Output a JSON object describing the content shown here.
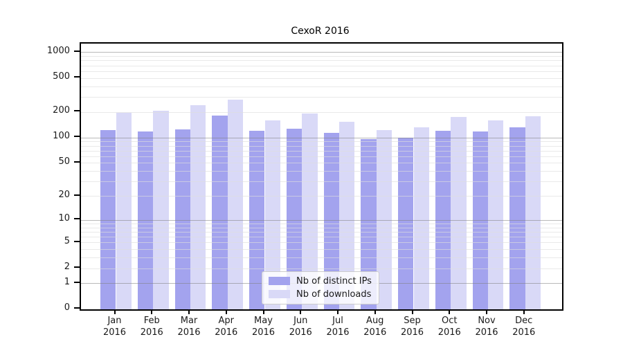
{
  "title": "CexoR 2016",
  "chart_data": {
    "type": "bar",
    "title": "CexoR 2016",
    "categories": [
      "Jan 2016",
      "Feb 2016",
      "Mar 2016",
      "Apr 2016",
      "May 2016",
      "Jun 2016",
      "Jul 2016",
      "Aug 2016",
      "Sep 2016",
      "Oct 2016",
      "Nov 2016",
      "Dec 2016"
    ],
    "x_tick_month": [
      "Jan",
      "Feb",
      "Mar",
      "Apr",
      "May",
      "Jun",
      "Jul",
      "Aug",
      "Sep",
      "Oct",
      "Nov",
      "Dec"
    ],
    "x_tick_year": "2016",
    "series": [
      {
        "name": "Nb of distinct IPs",
        "color": "#a3a3ee",
        "values": [
          124,
          118,
          125,
          183,
          120,
          127,
          114,
          97,
          100,
          121,
          119,
          133
        ]
      },
      {
        "name": "Nb of downloads",
        "color": "#d9d9f7",
        "values": [
          197,
          208,
          240,
          283,
          160,
          193,
          155,
          123,
          133,
          176,
          160,
          179
        ]
      }
    ],
    "xlabel": "",
    "ylabel": "",
    "yscale": "log1p",
    "ylim": [
      0,
      1274
    ],
    "ytick_values": [
      0,
      1,
      2,
      5,
      10,
      20,
      50,
      100,
      200,
      500,
      1000
    ],
    "ytick_labels": [
      "0",
      "1",
      "2",
      "5",
      "10",
      "20",
      "50",
      "100",
      "200",
      "500",
      "1000"
    ],
    "grid": {
      "horizontal": true,
      "minor": true,
      "major_color": "#8c8c8c",
      "minor_color": "#dddddd"
    },
    "legend": {
      "position": "inside-lower-center",
      "border_color": "#cccccc"
    }
  }
}
